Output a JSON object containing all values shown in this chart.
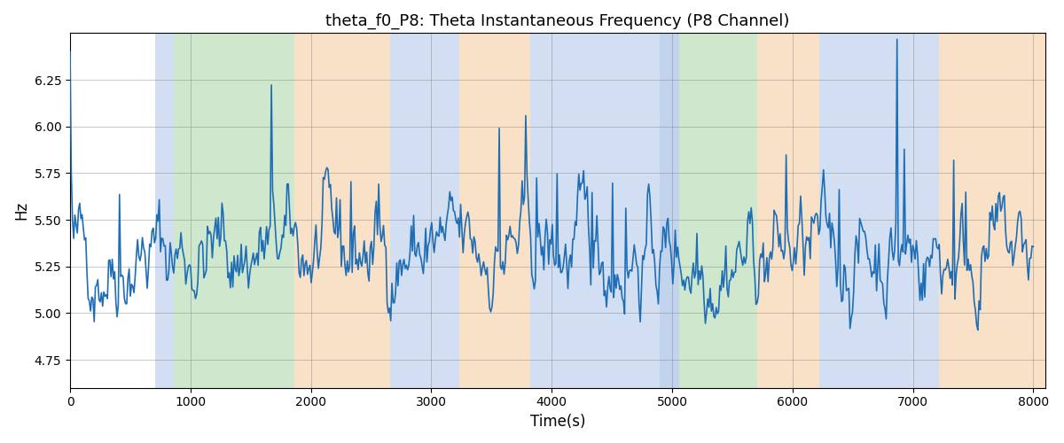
{
  "title": "theta_f0_P8: Theta Instantaneous Frequency (P8 Channel)",
  "xlabel": "Time(s)",
  "ylabel": "Hz",
  "xlim": [
    0,
    8100
  ],
  "ylim": [
    4.6,
    6.5
  ],
  "line_color": "#1f6eb5",
  "line_width": 1.2,
  "figsize": [
    12,
    5
  ],
  "dpi": 100,
  "background_color": "white",
  "bands": [
    {
      "xmin": 710,
      "xmax": 860,
      "color": "#aec6e8",
      "alpha": 0.55
    },
    {
      "xmin": 860,
      "xmax": 1860,
      "color": "#a8d5a2",
      "alpha": 0.55
    },
    {
      "xmin": 1860,
      "xmax": 2660,
      "color": "#f5c99a",
      "alpha": 0.55
    },
    {
      "xmin": 2660,
      "xmax": 3230,
      "color": "#aec6e8",
      "alpha": 0.55
    },
    {
      "xmin": 3230,
      "xmax": 3820,
      "color": "#f5c99a",
      "alpha": 0.55
    },
    {
      "xmin": 3820,
      "xmax": 4900,
      "color": "#aec6e8",
      "alpha": 0.55
    },
    {
      "xmin": 4900,
      "xmax": 5060,
      "color": "#aec6e8",
      "alpha": 0.75
    },
    {
      "xmin": 5060,
      "xmax": 5710,
      "color": "#a8d5a2",
      "alpha": 0.55
    },
    {
      "xmin": 5710,
      "xmax": 6220,
      "color": "#f5c99a",
      "alpha": 0.55
    },
    {
      "xmin": 6220,
      "xmax": 7220,
      "color": "#aec6e8",
      "alpha": 0.55
    },
    {
      "xmin": 7220,
      "xmax": 8100,
      "color": "#f5c99a",
      "alpha": 0.55
    }
  ],
  "xticks": [
    0,
    1000,
    2000,
    3000,
    4000,
    5000,
    6000,
    7000,
    8000
  ],
  "yticks": [
    4.75,
    5.0,
    5.25,
    5.5,
    5.75,
    6.0,
    6.25
  ],
  "seed": 42,
  "n_points": 800,
  "mean_freq": 5.32,
  "ar_coeff": 0.85,
  "noise_std": 0.09,
  "spike_prob": 0.04,
  "spike_std": 0.45
}
